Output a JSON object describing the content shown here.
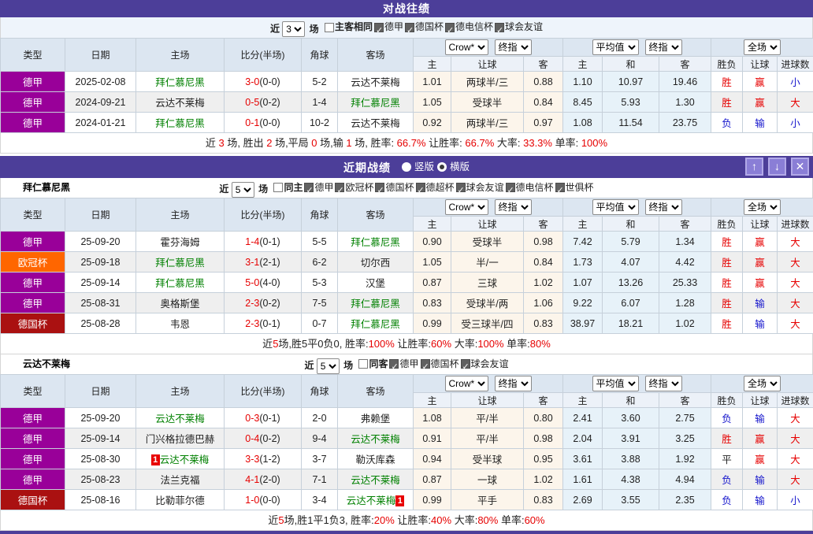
{
  "colors": {
    "title_bar": "#4c3e99",
    "window_button": "#8a7ed6",
    "team_link_green": "#008000",
    "win_red": "#e60000",
    "lose_blue": "#1414cc",
    "odds_group_bg": "#fcf5eb",
    "avg_group_bg": "#e7f2f9",
    "league_colors": {
      "德甲": "#990099",
      "欧冠杯": "#ff6600",
      "德国杯": "#aa1111"
    }
  },
  "table_header": {
    "cols": [
      "类型",
      "日期",
      "主场",
      "比分(半场)",
      "角球",
      "客场"
    ],
    "odds_group": {
      "selects": [
        "Crow*",
        "终指"
      ],
      "sub": [
        "主",
        "让球",
        "客"
      ]
    },
    "avg_group": {
      "selects": [
        "平均值",
        "终指"
      ],
      "sub": [
        "主",
        "和",
        "客"
      ]
    },
    "full_group": {
      "selects": [
        "全场"
      ],
      "sub": [
        "胜负",
        "让球",
        "进球数"
      ]
    }
  },
  "h2h": {
    "title": "对战往绩",
    "filter": {
      "near": "近",
      "count": "3",
      "unit": "场",
      "boxes": [
        [
          "主客相同",
          false
        ],
        [
          "德甲",
          true
        ],
        [
          "德国杯",
          true
        ],
        [
          "德电信杯",
          true
        ],
        [
          "球会友谊",
          true
        ]
      ]
    },
    "rows": [
      {
        "league": "德甲",
        "date": "2025-02-08",
        "home": {
          "name": "拜仁慕尼黑",
          "green": true
        },
        "score": "3-0",
        "half": "(0-0)",
        "corners": "5-2",
        "away": {
          "name": "云达不莱梅",
          "green": false
        },
        "odds": [
          "1.01",
          "两球半/三",
          "0.88"
        ],
        "avg": [
          "1.10",
          "10.97",
          "19.46"
        ],
        "res": [
          [
            "胜",
            "r"
          ],
          [
            "赢",
            "r"
          ],
          [
            "小",
            "b"
          ]
        ]
      },
      {
        "league": "德甲",
        "date": "2024-09-21",
        "home": {
          "name": "云达不莱梅",
          "green": false
        },
        "score": "0-5",
        "half": "(0-2)",
        "corners": "1-4",
        "away": {
          "name": "拜仁慕尼黑",
          "green": true
        },
        "odds": [
          "1.05",
          "受球半",
          "0.84"
        ],
        "avg": [
          "8.45",
          "5.93",
          "1.30"
        ],
        "res": [
          [
            "胜",
            "r"
          ],
          [
            "赢",
            "r"
          ],
          [
            "大",
            "r"
          ]
        ]
      },
      {
        "league": "德甲",
        "date": "2024-01-21",
        "home": {
          "name": "拜仁慕尼黑",
          "green": true
        },
        "score": "0-1",
        "half": "(0-0)",
        "corners": "10-2",
        "away": {
          "name": "云达不莱梅",
          "green": false
        },
        "odds": [
          "0.92",
          "两球半/三",
          "0.97"
        ],
        "avg": [
          "1.08",
          "11.54",
          "23.75"
        ],
        "res": [
          [
            "负",
            "b"
          ],
          [
            "输",
            "b"
          ],
          [
            "小",
            "b"
          ]
        ]
      }
    ],
    "summary": [
      [
        "近 ",
        0
      ],
      [
        "3",
        1
      ],
      [
        " 场, 胜出 ",
        0
      ],
      [
        "2",
        1
      ],
      [
        " 场,平局 ",
        0
      ],
      [
        "0",
        1
      ],
      [
        " 场,输 ",
        0
      ],
      [
        "1",
        1
      ],
      [
        " 场, 胜率: ",
        0
      ],
      [
        "66.7%",
        1
      ],
      [
        " 让胜率: ",
        0
      ],
      [
        "66.7%",
        1
      ],
      [
        " 大率: ",
        0
      ],
      [
        "33.3%",
        1
      ],
      [
        " 单率: ",
        0
      ],
      [
        "100%",
        1
      ]
    ]
  },
  "recent": {
    "title": "近期战绩",
    "radios": [
      [
        "竖版",
        false
      ],
      [
        "横版",
        true
      ]
    ],
    "buttons": {
      "up": "↑",
      "down": "↓",
      "close": "✕"
    },
    "teams": [
      {
        "name": "拜仁慕尼黑",
        "filter": {
          "near": "近",
          "count": "5",
          "unit": "场",
          "boxes": [
            [
              "同主",
              false
            ],
            [
              "德甲",
              true
            ],
            [
              "欧冠杯",
              true
            ],
            [
              "德国杯",
              true
            ],
            [
              "德超杯",
              true
            ],
            [
              "球会友谊",
              true
            ],
            [
              "德电信杯",
              true
            ],
            [
              "世俱杯",
              true
            ]
          ]
        },
        "rows": [
          {
            "league": "德甲",
            "date": "25-09-20",
            "home": {
              "name": "霍芬海姆",
              "green": false
            },
            "score": "1-4",
            "half": "(0-1)",
            "corners": "5-5",
            "away": {
              "name": "拜仁慕尼黑",
              "green": true
            },
            "odds": [
              "0.90",
              "受球半",
              "0.98"
            ],
            "avg": [
              "7.42",
              "5.79",
              "1.34"
            ],
            "res": [
              [
                "胜",
                "r"
              ],
              [
                "赢",
                "r"
              ],
              [
                "大",
                "r"
              ]
            ]
          },
          {
            "league": "欧冠杯",
            "date": "25-09-18",
            "home": {
              "name": "拜仁慕尼黑",
              "green": true
            },
            "score": "3-1",
            "half": "(2-1)",
            "corners": "6-2",
            "away": {
              "name": "切尔西",
              "green": false
            },
            "odds": [
              "1.05",
              "半/一",
              "0.84"
            ],
            "avg": [
              "1.73",
              "4.07",
              "4.42"
            ],
            "res": [
              [
                "胜",
                "r"
              ],
              [
                "赢",
                "r"
              ],
              [
                "大",
                "r"
              ]
            ]
          },
          {
            "league": "德甲",
            "date": "25-09-14",
            "home": {
              "name": "拜仁慕尼黑",
              "green": true
            },
            "score": "5-0",
            "half": "(4-0)",
            "corners": "5-3",
            "away": {
              "name": "汉堡",
              "green": false
            },
            "odds": [
              "0.87",
              "三球",
              "1.02"
            ],
            "avg": [
              "1.07",
              "13.26",
              "25.33"
            ],
            "res": [
              [
                "胜",
                "r"
              ],
              [
                "赢",
                "r"
              ],
              [
                "大",
                "r"
              ]
            ]
          },
          {
            "league": "德甲",
            "date": "25-08-31",
            "home": {
              "name": "奥格斯堡",
              "green": false
            },
            "score": "2-3",
            "half": "(0-2)",
            "corners": "7-5",
            "away": {
              "name": "拜仁慕尼黑",
              "green": true
            },
            "odds": [
              "0.83",
              "受球半/两",
              "1.06"
            ],
            "avg": [
              "9.22",
              "6.07",
              "1.28"
            ],
            "res": [
              [
                "胜",
                "r"
              ],
              [
                "输",
                "b"
              ],
              [
                "大",
                "r"
              ]
            ]
          },
          {
            "league": "德国杯",
            "date": "25-08-28",
            "home": {
              "name": "韦恩",
              "green": false
            },
            "score": "2-3",
            "half": "(0-1)",
            "corners": "0-7",
            "away": {
              "name": "拜仁慕尼黑",
              "green": true
            },
            "odds": [
              "0.99",
              "受三球半/四",
              "0.83"
            ],
            "avg": [
              "38.97",
              "18.21",
              "1.02"
            ],
            "res": [
              [
                "胜",
                "r"
              ],
              [
                "输",
                "b"
              ],
              [
                "大",
                "r"
              ]
            ]
          }
        ],
        "summary": [
          [
            "近",
            0
          ],
          [
            "5",
            1
          ],
          [
            "场,胜5平0负0, 胜率:",
            0
          ],
          [
            "100%",
            1
          ],
          [
            " 让胜率:",
            0
          ],
          [
            "60%",
            1
          ],
          [
            " 大率:",
            0
          ],
          [
            "100%",
            1
          ],
          [
            " 单率:",
            0
          ],
          [
            "80%",
            1
          ]
        ]
      },
      {
        "name": "云达不莱梅",
        "filter": {
          "near": "近",
          "count": "5",
          "unit": "场",
          "boxes": [
            [
              "同客",
              false
            ],
            [
              "德甲",
              true
            ],
            [
              "德国杯",
              true
            ],
            [
              "球会友谊",
              true
            ]
          ]
        },
        "rows": [
          {
            "league": "德甲",
            "date": "25-09-20",
            "home": {
              "name": "云达不莱梅",
              "green": true
            },
            "score": "0-3",
            "half": "(0-1)",
            "corners": "2-0",
            "away": {
              "name": "弗赖堡",
              "green": false
            },
            "odds": [
              "1.08",
              "平/半",
              "0.80"
            ],
            "avg": [
              "2.41",
              "3.60",
              "2.75"
            ],
            "res": [
              [
                "负",
                "b"
              ],
              [
                "输",
                "b"
              ],
              [
                "大",
                "r"
              ]
            ]
          },
          {
            "league": "德甲",
            "date": "25-09-14",
            "home": {
              "name": "门兴格拉德巴赫",
              "green": false
            },
            "score": "0-4",
            "half": "(0-2)",
            "corners": "9-4",
            "away": {
              "name": "云达不莱梅",
              "green": true
            },
            "odds": [
              "0.91",
              "平/半",
              "0.98"
            ],
            "avg": [
              "2.04",
              "3.91",
              "3.25"
            ],
            "res": [
              [
                "胜",
                "r"
              ],
              [
                "赢",
                "r"
              ],
              [
                "大",
                "r"
              ]
            ]
          },
          {
            "league": "德甲",
            "date": "25-08-30",
            "home": {
              "name": "云达不莱梅",
              "green": true,
              "badge": "1",
              "badgePos": "before"
            },
            "score": "3-3",
            "half": "(1-2)",
            "corners": "3-7",
            "away": {
              "name": "勒沃库森",
              "green": false
            },
            "odds": [
              "0.94",
              "受半球",
              "0.95"
            ],
            "avg": [
              "3.61",
              "3.88",
              "1.92"
            ],
            "res": [
              [
                "平",
                "k"
              ],
              [
                "赢",
                "r"
              ],
              [
                "大",
                "r"
              ]
            ]
          },
          {
            "league": "德甲",
            "date": "25-08-23",
            "home": {
              "name": "法兰克福",
              "green": false
            },
            "score": "4-1",
            "half": "(2-0)",
            "corners": "7-1",
            "away": {
              "name": "云达不莱梅",
              "green": true
            },
            "odds": [
              "0.87",
              "一球",
              "1.02"
            ],
            "avg": [
              "1.61",
              "4.38",
              "4.94"
            ],
            "res": [
              [
                "负",
                "b"
              ],
              [
                "输",
                "b"
              ],
              [
                "大",
                "r"
              ]
            ]
          },
          {
            "league": "德国杯",
            "date": "25-08-16",
            "home": {
              "name": "比勒菲尔德",
              "green": false
            },
            "score": "1-0",
            "half": "(0-0)",
            "corners": "3-4",
            "away": {
              "name": "云达不莱梅",
              "green": true,
              "badge": "1",
              "badgePos": "after"
            },
            "odds": [
              "0.99",
              "平手",
              "0.83"
            ],
            "avg": [
              "2.69",
              "3.55",
              "2.35"
            ],
            "res": [
              [
                "负",
                "b"
              ],
              [
                "输",
                "b"
              ],
              [
                "小",
                "b"
              ]
            ]
          }
        ],
        "summary": [
          [
            "近",
            0
          ],
          [
            "5",
            1
          ],
          [
            "场,胜1平1负3, 胜率:",
            0
          ],
          [
            "20%",
            1
          ],
          [
            " 让胜率:",
            0
          ],
          [
            "40%",
            1
          ],
          [
            " 大率:",
            0
          ],
          [
            "80%",
            1
          ],
          [
            " 单率:",
            0
          ],
          [
            "60%",
            1
          ]
        ]
      }
    ]
  }
}
